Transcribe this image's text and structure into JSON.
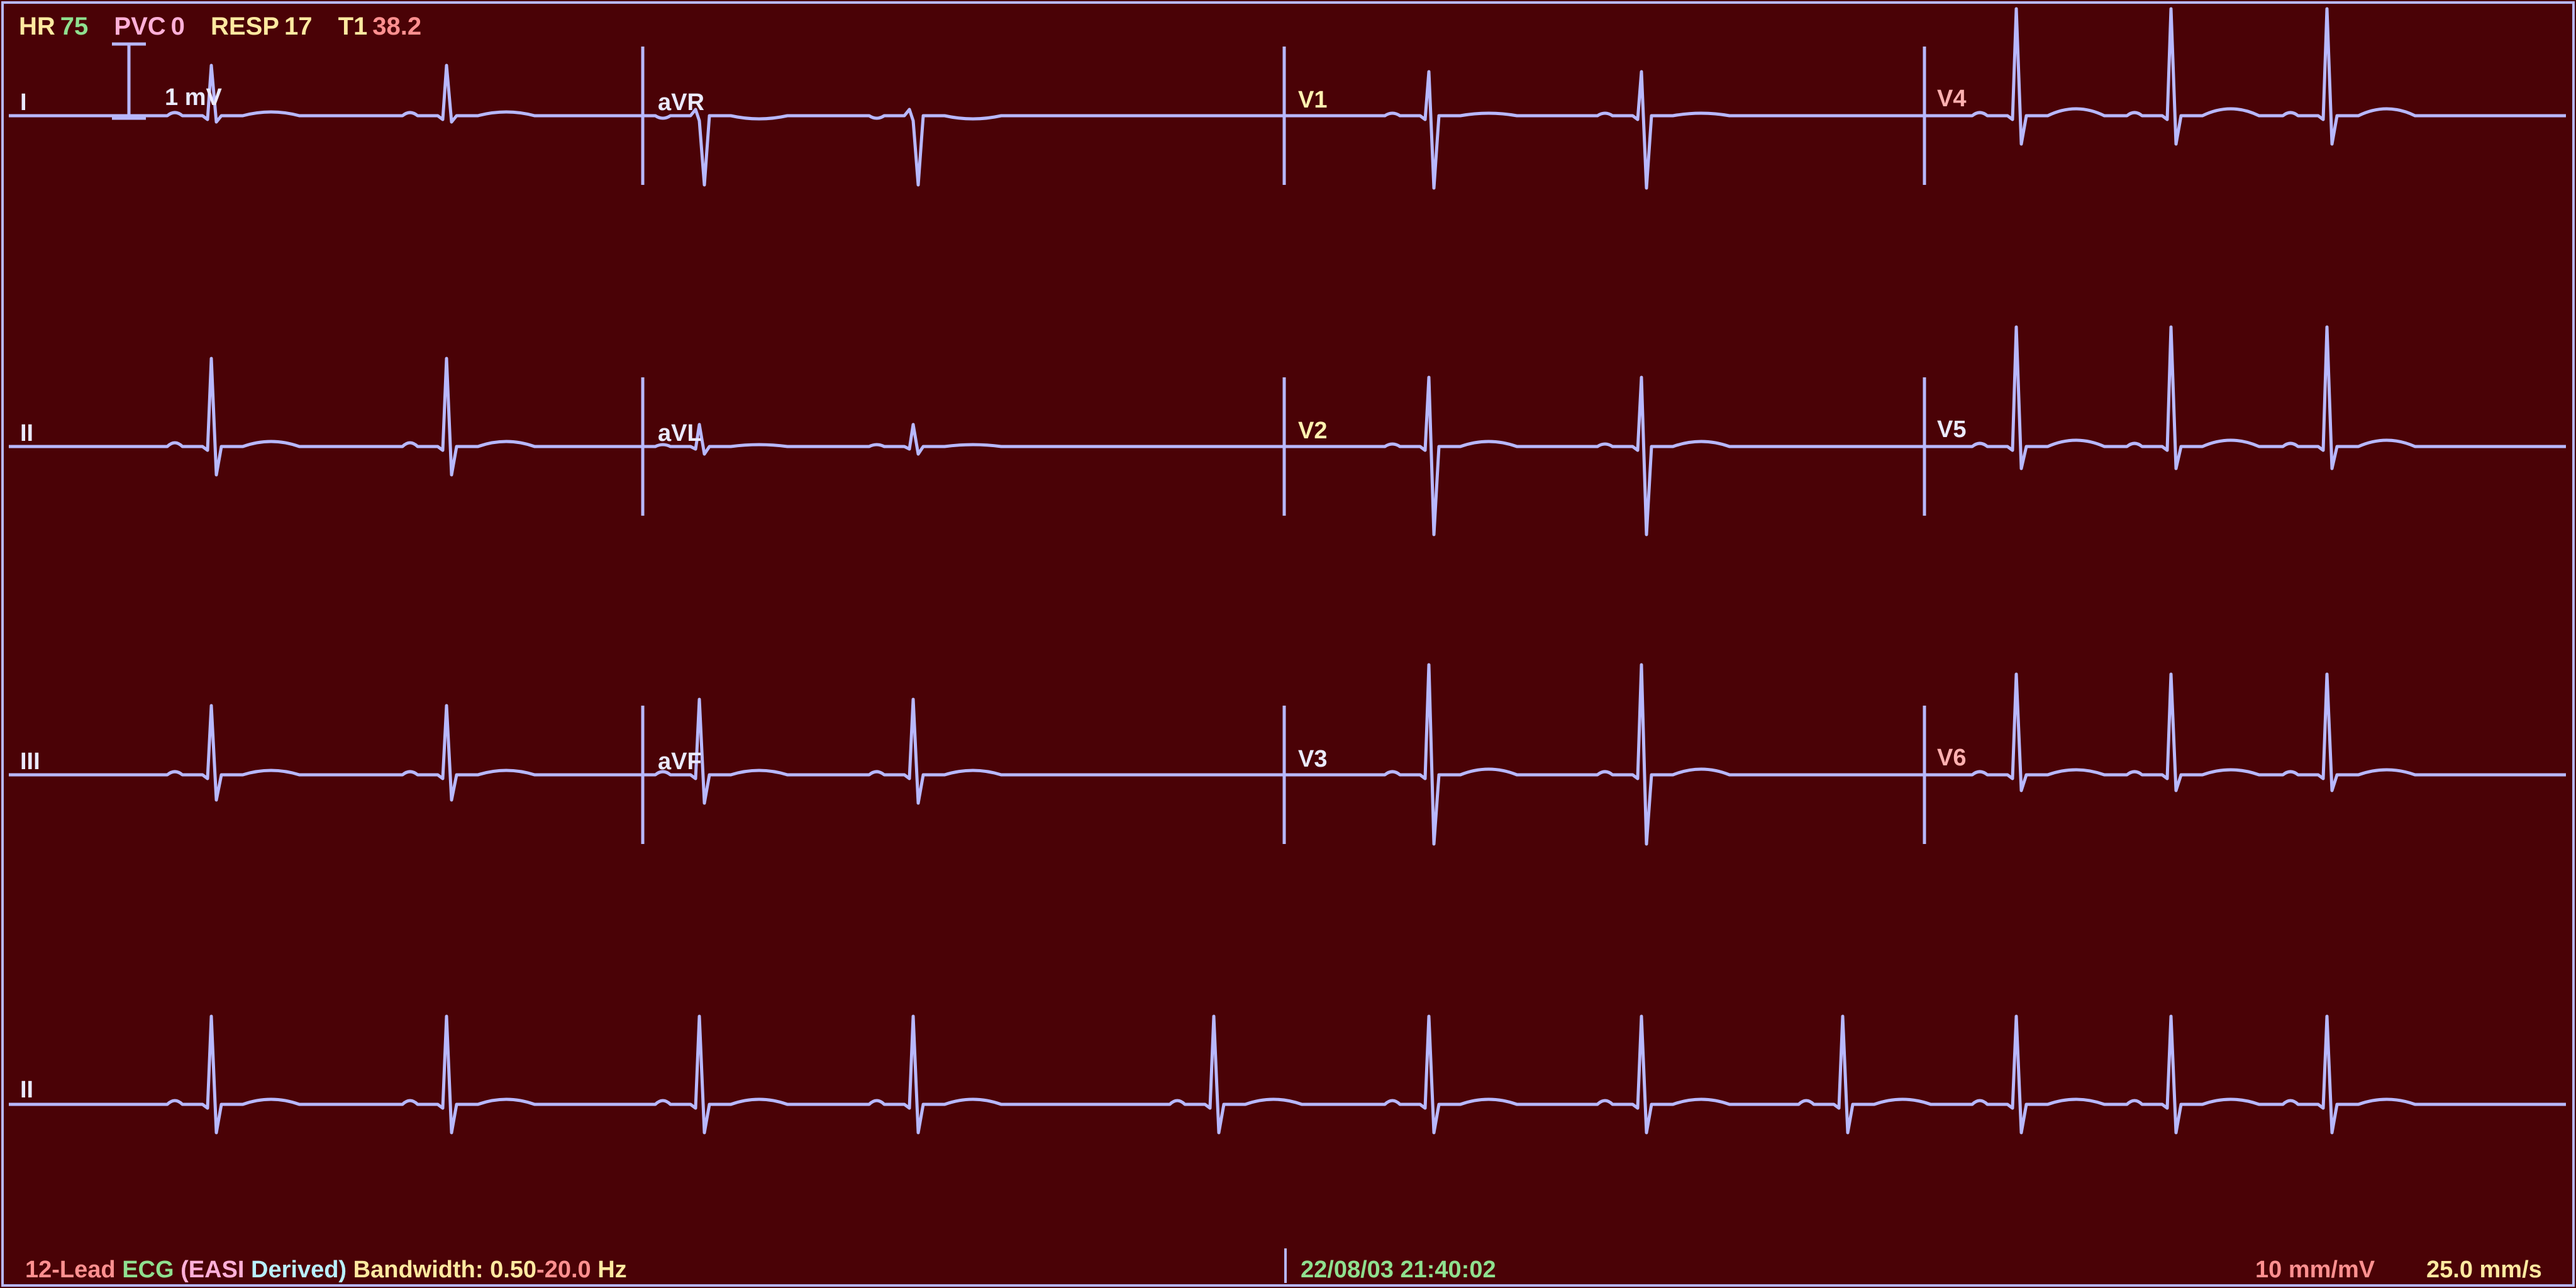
{
  "vitals": {
    "hr_label": "HR",
    "hr_value": "75",
    "pvc_label": "PVC",
    "pvc_value": "0",
    "resp_label": "RESP",
    "resp_value": "17",
    "temp_label": "T1",
    "temp_value": "38.2"
  },
  "calibration": {
    "label": "1 mV"
  },
  "leads": {
    "I": "I",
    "II": "II",
    "III": "III",
    "aVR": "aVR",
    "aVL": "aVL",
    "aVF": "aVF",
    "V1": "V1",
    "V2": "V2",
    "V3": "V3",
    "V4": "V4",
    "V5": "V5",
    "V6": "V6",
    "rhythm": "II"
  },
  "footer": {
    "seg1": "12-Lead",
    "seg2": "ECG",
    "seg3": "(EASI",
    "seg4": "Derived)",
    "seg5": "Bandwidth:",
    "bw_low": "0.50",
    "bw_sep": "-",
    "bw_high": "20.0",
    "bw_unit": "Hz",
    "timestamp": "22/08/03 21:40:02",
    "gain": "10 mm/mV",
    "speed": "25.0 mm/s"
  },
  "colors": {
    "background": "#4a0206",
    "trace": "#b8b8ff",
    "hr": "#8fe08f",
    "pvc": "#ffb0d8",
    "resp": "#ffe9a0",
    "temp": "#ff9090",
    "label": "#eaeaff"
  }
}
